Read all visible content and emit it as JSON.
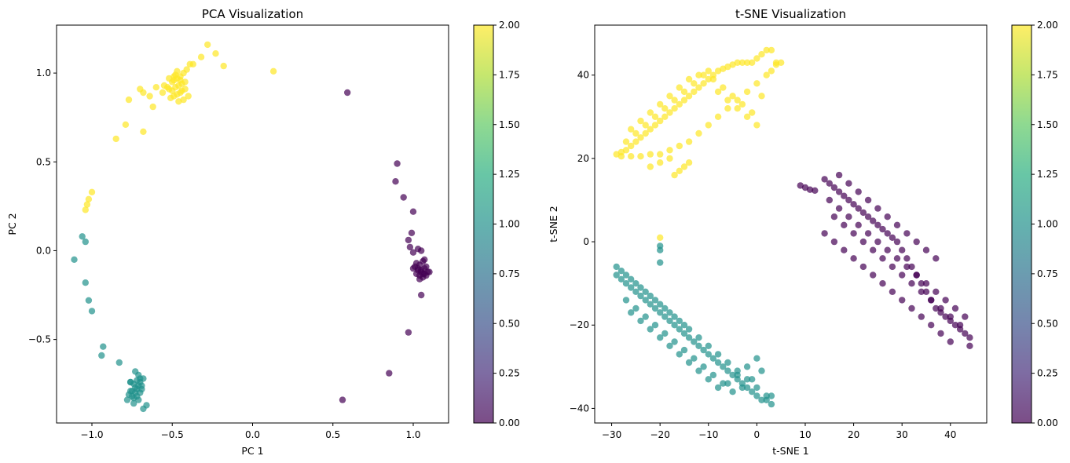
{
  "chart_data": [
    {
      "type": "scatter",
      "title": "PCA Visualization",
      "xlabel": "PC 1",
      "ylabel": "PC 2",
      "xlim": [
        -1.22,
        1.22
      ],
      "ylim": [
        -0.97,
        1.27
      ],
      "xticks": [
        -1.0,
        -0.5,
        0.0,
        0.5,
        1.0
      ],
      "xtick_labels": [
        "−1.0",
        "−0.5",
        "0.0",
        "0.5",
        "1.0"
      ],
      "yticks": [
        -0.5,
        0.0,
        0.5,
        1.0
      ],
      "ytick_labels": [
        "−0.5",
        "0.0",
        "0.5",
        "1.0"
      ],
      "colormap": "viridis",
      "alpha": 0.7,
      "colorbar": {
        "range": [
          0,
          2
        ],
        "ticks": [
          0,
          0.25,
          0.5,
          0.75,
          1.0,
          1.25,
          1.5,
          1.75,
          2.0
        ],
        "tick_labels": [
          "0.00",
          "0.25",
          "0.50",
          "0.75",
          "1.00",
          "1.25",
          "1.50",
          "1.75",
          "2.00"
        ]
      },
      "series": [
        {
          "class_value": 0,
          "x": [
            0.59,
            0.9,
            0.89,
            0.94,
            1.0,
            0.99,
            0.97,
            0.98,
            1.03,
            1.0,
            1.05,
            1.07,
            1.02,
            1.06,
            1.04,
            1.08,
            1.1,
            1.0,
            1.03,
            1.05,
            1.07,
            1.09,
            1.02,
            1.04,
            1.06,
            1.08,
            1.01,
            1.03,
            1.05,
            1.07,
            1.04,
            1.06,
            1.05,
            0.97,
            0.85,
            0.56
          ],
          "y": [
            0.89,
            0.49,
            0.39,
            0.3,
            0.22,
            0.1,
            0.06,
            0.02,
            0.01,
            -0.01,
            0.0,
            -0.05,
            -0.07,
            -0.06,
            -0.08,
            -0.09,
            -0.12,
            -0.1,
            -0.11,
            -0.12,
            -0.13,
            -0.12,
            -0.13,
            -0.14,
            -0.15,
            -0.14,
            -0.09,
            -0.1,
            -0.11,
            -0.1,
            -0.16,
            -0.13,
            -0.25,
            -0.46,
            -0.69,
            -0.84
          ]
        },
        {
          "class_value": 1,
          "x": [
            -1.06,
            -1.04,
            -1.11,
            -1.04,
            -1.02,
            -1.0,
            -0.93,
            -0.94,
            -0.83,
            -0.76,
            -0.73,
            -0.71,
            -0.7,
            -0.72,
            -0.74,
            -0.76,
            -0.71,
            -0.69,
            -0.73,
            -0.75,
            -0.77,
            -0.7,
            -0.72,
            -0.74,
            -0.68,
            -0.71,
            -0.73,
            -0.75,
            -0.78,
            -0.7,
            -0.72,
            -0.69,
            -0.74,
            -0.76,
            -0.66,
            -0.68
          ],
          "y": [
            0.08,
            0.05,
            -0.05,
            -0.18,
            -0.28,
            -0.34,
            -0.54,
            -0.59,
            -0.63,
            -0.74,
            -0.68,
            -0.7,
            -0.72,
            -0.73,
            -0.75,
            -0.74,
            -0.76,
            -0.78,
            -0.77,
            -0.79,
            -0.81,
            -0.8,
            -0.82,
            -0.83,
            -0.72,
            -0.84,
            -0.8,
            -0.82,
            -0.84,
            -0.74,
            -0.78,
            -0.76,
            -0.86,
            -0.79,
            -0.87,
            -0.89
          ]
        },
        {
          "class_value": 2,
          "x": [
            0.13,
            -0.28,
            -0.23,
            -0.32,
            -0.18,
            -0.37,
            -0.39,
            -0.41,
            -0.43,
            -0.45,
            -0.47,
            -0.49,
            -0.5,
            -0.52,
            -0.44,
            -0.46,
            -0.48,
            -0.42,
            -0.5,
            -0.53,
            -0.55,
            -0.45,
            -0.47,
            -0.49,
            -0.51,
            -0.4,
            -0.43,
            -0.46,
            -0.44,
            -0.48,
            -0.42,
            -0.45,
            -0.47,
            -0.49,
            -0.52,
            -0.56,
            -0.6,
            -0.64,
            -0.68,
            -0.7,
            -0.77,
            -0.62,
            -0.79,
            -0.85,
            -0.68,
            -1.0,
            -1.02,
            -1.03,
            -1.04
          ],
          "y": [
            1.01,
            1.16,
            1.11,
            1.09,
            1.04,
            1.05,
            1.05,
            1.02,
            1.0,
            0.98,
            0.97,
            0.96,
            0.95,
            0.97,
            0.94,
            0.93,
            0.92,
            0.91,
            0.9,
            0.92,
            0.93,
            0.89,
            0.88,
            0.87,
            0.86,
            0.87,
            0.85,
            0.84,
            0.9,
            0.99,
            0.95,
            0.96,
            1.01,
            0.98,
            0.91,
            0.89,
            0.92,
            0.87,
            0.89,
            0.91,
            0.85,
            0.81,
            0.71,
            0.63,
            0.67,
            0.33,
            0.29,
            0.26,
            0.23
          ]
        }
      ]
    },
    {
      "type": "scatter",
      "title": "t-SNE Visualization",
      "xlabel": "t-SNE 1",
      "ylabel": "t-SNE 2",
      "xlim": [
        -33.5,
        47.5
      ],
      "ylim": [
        -43.5,
        52
      ],
      "xticks": [
        -30,
        -20,
        -10,
        0,
        10,
        20,
        30,
        40
      ],
      "xtick_labels": [
        "−30",
        "−20",
        "−10",
        "0",
        "10",
        "20",
        "30",
        "40"
      ],
      "yticks": [
        -40,
        -20,
        0,
        20,
        40
      ],
      "ytick_labels": [
        "−40",
        "−20",
        "0",
        "20",
        "40"
      ],
      "colormap": "viridis",
      "alpha": 0.7,
      "colorbar": {
        "range": [
          0,
          2
        ],
        "ticks": [
          0,
          0.25,
          0.5,
          0.75,
          1.0,
          1.25,
          1.5,
          1.75,
          2.0
        ],
        "tick_labels": [
          "0.00",
          "0.25",
          "0.50",
          "0.75",
          "1.00",
          "1.25",
          "1.50",
          "1.75",
          "2.00"
        ]
      },
      "series": [
        {
          "class_value": 0,
          "x": [
            9,
            10,
            11,
            12,
            14,
            15,
            16,
            17,
            18,
            19,
            20,
            21,
            22,
            23,
            24,
            25,
            26,
            27,
            28,
            29,
            30,
            31,
            32,
            33,
            34,
            35,
            36,
            37,
            38,
            39,
            40,
            41,
            42,
            43,
            44,
            15,
            17,
            19,
            21,
            23,
            25,
            27,
            29,
            31,
            33,
            35,
            37,
            39,
            41,
            43,
            16,
            18,
            20,
            22,
            24,
            26,
            28,
            30,
            32,
            34,
            36,
            38,
            40,
            42,
            17,
            19,
            21,
            23,
            25,
            27,
            29,
            31,
            33,
            35,
            37,
            14,
            16,
            18,
            20,
            22,
            24,
            26,
            28,
            30,
            32,
            34,
            36,
            38,
            40,
            44
          ],
          "y": [
            13.5,
            13,
            12.5,
            12.3,
            15,
            14,
            13,
            12,
            11,
            10,
            9,
            8,
            7,
            6,
            5,
            4,
            3,
            2,
            1,
            0,
            -2,
            -4,
            -6,
            -8,
            -10,
            -12,
            -14,
            -16,
            -17,
            -18,
            -19,
            -20,
            -21,
            -22,
            -23,
            10,
            8,
            6,
            4,
            2,
            0,
            -2,
            -4,
            -6,
            -8,
            -10,
            -12,
            -14,
            -16,
            -18,
            6,
            4,
            2,
            0,
            -2,
            -4,
            -6,
            -8,
            -10,
            -12,
            -14,
            -16,
            -18,
            -20,
            16,
            14,
            12,
            10,
            8,
            6,
            4,
            2,
            0,
            -2,
            -4,
            2,
            0,
            -2,
            -4,
            -6,
            -8,
            -10,
            -12,
            -14,
            -16,
            -18,
            -20,
            -22,
            -24,
            -25
          ]
        },
        {
          "class_value": 1,
          "x": [
            -20,
            -20,
            -20,
            -29,
            -28,
            -27,
            -26,
            -25,
            -24,
            -23,
            -22,
            -21,
            -20,
            -19,
            -18,
            -17,
            -16,
            -15,
            -14,
            -13,
            -12,
            -11,
            -10,
            -9,
            -8,
            -7,
            -6,
            -5,
            -4,
            -3,
            -2,
            -1,
            0,
            1,
            2,
            3,
            -28,
            -26,
            -24,
            -22,
            -20,
            -18,
            -16,
            -14,
            -12,
            -10,
            -8,
            -6,
            -4,
            -2,
            0,
            2,
            -27,
            -25,
            -23,
            -21,
            -19,
            -17,
            -15,
            -13,
            -11,
            -9,
            -7,
            -5,
            -3,
            -1,
            1,
            3,
            -26,
            -24,
            -22,
            -20,
            -18,
            -16,
            -14,
            -12,
            -10,
            -8,
            -6,
            -4,
            -2,
            0,
            -29,
            -27,
            -25,
            -23,
            -21,
            -19,
            -17,
            -15
          ],
          "y": [
            -1,
            -2,
            -5,
            -8,
            -9,
            -10,
            -11,
            -12,
            -13,
            -14,
            -15,
            -16,
            -17,
            -18,
            -19,
            -20,
            -21,
            -22,
            -23,
            -24,
            -25,
            -26,
            -27,
            -28,
            -29,
            -30,
            -31,
            -32,
            -33,
            -34,
            -35,
            -36,
            -37,
            -38,
            -38,
            -39,
            -7,
            -9,
            -11,
            -13,
            -15,
            -17,
            -19,
            -21,
            -23,
            -25,
            -27,
            -29,
            -31,
            -33,
            -35,
            -37,
            -14,
            -16,
            -18,
            -20,
            -22,
            -24,
            -26,
            -28,
            -30,
            -32,
            -34,
            -36,
            -35,
            -33,
            -31,
            -37,
            -17,
            -19,
            -21,
            -23,
            -25,
            -27,
            -29,
            -31,
            -33,
            -35,
            -34,
            -32,
            -30,
            -28,
            -6,
            -8,
            -10,
            -12,
            -14,
            -16,
            -18,
            -20
          ]
        },
        {
          "class_value": 2,
          "x": [
            -20,
            -29,
            -28,
            -27,
            -26,
            -25,
            -24,
            -23,
            -22,
            -21,
            -20,
            -19,
            -18,
            -17,
            -16,
            -15,
            -14,
            -13,
            -12,
            -11,
            -10,
            -9,
            -8,
            -7,
            -6,
            -5,
            -4,
            -3,
            -2,
            -1,
            0,
            1,
            2,
            3,
            4,
            5,
            -28,
            -26,
            -24,
            -22,
            -20,
            -18,
            -16,
            -14,
            -12,
            -10,
            -8,
            -6,
            -4,
            -2,
            0,
            2,
            4,
            -27,
            -25,
            -23,
            -21,
            -19,
            -17,
            -15,
            -13,
            -11,
            -9,
            -7,
            -5,
            -3,
            -1,
            1,
            3,
            -26,
            -24,
            -22,
            -20,
            -18,
            -16,
            -14,
            -12,
            -10,
            -8,
            -6,
            -4,
            -2,
            0,
            -17,
            -16,
            -15,
            -14,
            -22,
            -20,
            -18
          ],
          "y": [
            1,
            21,
            21.5,
            22,
            23,
            24,
            25,
            26,
            27,
            28,
            29,
            30,
            31,
            32,
            33,
            34,
            35,
            36,
            37,
            38,
            39,
            40,
            41,
            41.5,
            42,
            42.5,
            43,
            43,
            43,
            43,
            44,
            45,
            46,
            46,
            43,
            43,
            20.5,
            20.5,
            20.5,
            21,
            21,
            22,
            23,
            24,
            26,
            28,
            30,
            32,
            34,
            36,
            38,
            40,
            42.5,
            24,
            26,
            28,
            30,
            32,
            34,
            36,
            38,
            40,
            39,
            37,
            35,
            33,
            31,
            35,
            41,
            27,
            29,
            31,
            33,
            35,
            37,
            39,
            40,
            41,
            36,
            34,
            32,
            30,
            28,
            16,
            17,
            18,
            19,
            18,
            19,
            20
          ]
        }
      ]
    }
  ]
}
